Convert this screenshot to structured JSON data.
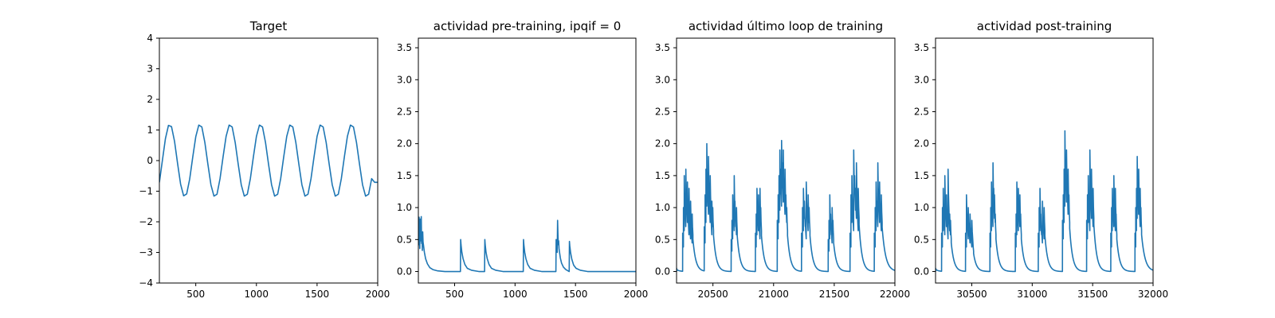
{
  "chart_data": [
    {
      "type": "line",
      "title": "Target",
      "xlim": [
        200,
        2000
      ],
      "ylim": [
        -4,
        4
      ],
      "xticks": [
        500,
        1000,
        1500,
        2000
      ],
      "yticks": [
        -4,
        -3,
        -2,
        -1,
        0,
        1,
        2,
        3,
        4
      ],
      "x_tick_labels": [
        "500",
        "1000",
        "1500",
        "2000"
      ],
      "y_tick_labels": [
        "−4",
        "−3",
        "−2",
        "−1",
        "0",
        "1",
        "2",
        "3",
        "4"
      ],
      "series": [
        {
          "color": "#1f77b4",
          "x": [
            200,
            225,
            250,
            275,
            300,
            325,
            350,
            375,
            400,
            425,
            450,
            475,
            500,
            525,
            550,
            575,
            600,
            625,
            650,
            675,
            700,
            725,
            750,
            775,
            800,
            825,
            850,
            875,
            900,
            925,
            950,
            975,
            1000,
            1025,
            1050,
            1075,
            1100,
            1125,
            1150,
            1175,
            1200,
            1225,
            1250,
            1275,
            1300,
            1325,
            1350,
            1375,
            1400,
            1425,
            1450,
            1475,
            1500,
            1525,
            1550,
            1575,
            1600,
            1625,
            1650,
            1675,
            1700,
            1725,
            1750,
            1775,
            1800,
            1825,
            1850,
            1875,
            1900,
            1925,
            1950,
            1975,
            2000
          ],
          "y": [
            -0.71,
            0.01,
            0.72,
            1.15,
            1.11,
            0.63,
            -0.09,
            -0.77,
            -1.15,
            -1.09,
            -0.6,
            0.11,
            0.78,
            1.16,
            1.1,
            0.59,
            -0.12,
            -0.79,
            -1.16,
            -1.1,
            -0.59,
            0.12,
            0.79,
            1.16,
            1.1,
            0.59,
            -0.12,
            -0.79,
            -1.16,
            -1.1,
            -0.59,
            0.12,
            0.79,
            1.16,
            1.1,
            0.59,
            -0.12,
            -0.79,
            -1.16,
            -1.1,
            -0.59,
            0.12,
            0.79,
            1.16,
            1.1,
            0.59,
            -0.12,
            -0.79,
            -1.16,
            -1.1,
            -0.59,
            0.12,
            0.79,
            1.16,
            1.1,
            0.59,
            -0.12,
            -0.79,
            -1.16,
            -1.1,
            -0.59,
            0.12,
            0.79,
            1.16,
            1.1,
            0.59,
            -0.12,
            -0.79,
            -1.16,
            -1.1,
            -0.59,
            -0.71,
            -0.71
          ]
        }
      ]
    },
    {
      "type": "line",
      "title": "actividad pre-training, ipqif = 0",
      "xlim": [
        200,
        2000
      ],
      "ylim": [
        -0.18,
        3.65
      ],
      "xticks": [
        500,
        1000,
        1500,
        2000
      ],
      "yticks": [
        0,
        0.5,
        1,
        1.5,
        2,
        2.5,
        3,
        3.5
      ],
      "x_tick_labels": [
        "500",
        "1000",
        "1500",
        "2000"
      ],
      "y_tick_labels": [
        "0.0",
        "0.5",
        "1.0",
        "1.5",
        "2.0",
        "2.5",
        "3.0",
        "3.5"
      ],
      "series": [
        {
          "color": "#1f77b4",
          "x": [
            200,
            203,
            206,
            209,
            212,
            215,
            218,
            221,
            224,
            227,
            230,
            233,
            236,
            239,
            242,
            250,
            260,
            275,
            295,
            320,
            360,
            420,
            500,
            548,
            550,
            553,
            560,
            570,
            585,
            605,
            640,
            700,
            748,
            750,
            753,
            760,
            770,
            785,
            805,
            840,
            900,
            1000,
            1068,
            1070,
            1073,
            1080,
            1090,
            1105,
            1125,
            1160,
            1220,
            1300,
            1338,
            1340,
            1343,
            1346,
            1349,
            1352,
            1355,
            1358,
            1361,
            1364,
            1368,
            1375,
            1385,
            1400,
            1420,
            1448,
            1450,
            1453,
            1460,
            1470,
            1485,
            1505,
            1540,
            1600,
            1700,
            1800,
            1900,
            2000
          ],
          "y": [
            0.76,
            0.42,
            0.85,
            0.52,
            0.36,
            0.82,
            0.48,
            0.64,
            0.86,
            0.44,
            0.6,
            0.33,
            0.62,
            0.46,
            0.42,
            0.3,
            0.2,
            0.12,
            0.06,
            0.03,
            0.01,
            0.0,
            0.0,
            0.0,
            0.5,
            0.42,
            0.3,
            0.2,
            0.11,
            0.05,
            0.02,
            0.0,
            0.0,
            0.5,
            0.42,
            0.3,
            0.2,
            0.11,
            0.05,
            0.02,
            0.0,
            0.0,
            0.0,
            0.5,
            0.42,
            0.3,
            0.2,
            0.11,
            0.05,
            0.02,
            0.0,
            0.0,
            0.0,
            0.5,
            0.38,
            0.45,
            0.3,
            0.8,
            0.58,
            0.42,
            0.48,
            0.36,
            0.3,
            0.21,
            0.13,
            0.07,
            0.03,
            0.0,
            0.47,
            0.4,
            0.29,
            0.19,
            0.1,
            0.05,
            0.02,
            0.0,
            0.0,
            0.0,
            0.0,
            0.0
          ]
        }
      ]
    },
    {
      "type": "line",
      "title": "actividad último loop de training",
      "xlim": [
        20200,
        22000
      ],
      "ylim": [
        -0.18,
        3.65
      ],
      "xticks": [
        20500,
        21000,
        21500,
        22000
      ],
      "yticks": [
        0,
        0.5,
        1,
        1.5,
        2,
        2.5,
        3,
        3.5
      ],
      "x_tick_labels": [
        "20500",
        "21000",
        "21500",
        "22000"
      ],
      "y_tick_labels": [
        "0.0",
        "0.5",
        "1.0",
        "1.5",
        "2.0",
        "2.5",
        "3.0",
        "3.5"
      ],
      "bursts": [
        {
          "start": 20200,
          "end": 20203,
          "peaks": [
            0.05
          ]
        },
        {
          "start": 20250,
          "end": 20335,
          "peaks": [
            0.6,
            1.0,
            1.5,
            1.1,
            1.6,
            1.2,
            1.4,
            0.9,
            1.3,
            0.8,
            1.1,
            0.7,
            0.9
          ]
        },
        {
          "start": 20428,
          "end": 20505,
          "peaks": [
            0.7,
            1.2,
            1.6,
            2.0,
            1.4,
            1.8,
            1.2,
            1.5,
            0.9,
            1.1,
            1.0
          ]
        },
        {
          "start": 20650,
          "end": 20700,
          "peaks": [
            0.5,
            0.8,
            1.2,
            1.0,
            1.5,
            1.1,
            0.9,
            1.0
          ]
        },
        {
          "start": 20850,
          "end": 20900,
          "peaks": [
            0.6,
            0.9,
            1.3,
            1.0,
            1.2,
            0.8,
            1.3,
            1.0
          ]
        },
        {
          "start": 21030,
          "end": 21115,
          "peaks": [
            0.8,
            1.2,
            1.5,
            1.9,
            1.6,
            2.05,
            1.7,
            1.9,
            1.4,
            1.6,
            1.2,
            1.0
          ]
        },
        {
          "start": 21230,
          "end": 21300,
          "peaks": [
            0.6,
            1.0,
            1.3,
            1.1,
            0.8,
            1.4,
            1.0,
            1.2,
            1.0
          ]
        },
        {
          "start": 21450,
          "end": 21495,
          "peaks": [
            0.5,
            0.8,
            1.2,
            0.9,
            0.7,
            1.0,
            0.8
          ]
        },
        {
          "start": 21630,
          "end": 21705,
          "peaks": [
            0.6,
            1.2,
            1.5,
            1.0,
            1.9,
            1.5,
            1.3,
            1.7,
            1.0,
            1.3
          ]
        },
        {
          "start": 21830,
          "end": 21895,
          "peaks": [
            0.6,
            1.0,
            1.4,
            1.1,
            1.7,
            1.2,
            1.4,
            1.0,
            1.2
          ]
        }
      ]
    },
    {
      "type": "line",
      "title": "actividad post-training",
      "xlim": [
        30200,
        32000
      ],
      "ylim": [
        -0.18,
        3.65
      ],
      "xticks": [
        30500,
        31000,
        31500,
        32000
      ],
      "yticks": [
        0,
        0.5,
        1,
        1.5,
        2,
        2.5,
        3,
        3.5
      ],
      "x_tick_labels": [
        "30500",
        "31000",
        "31500",
        "32000"
      ],
      "y_tick_labels": [
        "0.0",
        "0.5",
        "1.0",
        "1.5",
        "2.0",
        "2.5",
        "3.0",
        "3.5"
      ],
      "bursts": [
        {
          "start": 30200,
          "end": 30205,
          "peaks": [
            0.05
          ]
        },
        {
          "start": 30250,
          "end": 30330,
          "peaks": [
            0.6,
            1.0,
            1.3,
            0.9,
            1.5,
            1.1,
            1.2,
            0.8,
            1.6,
            1.0,
            0.9,
            0.8
          ]
        },
        {
          "start": 30448,
          "end": 30515,
          "peaks": [
            0.6,
            1.2,
            0.8,
            1.0,
            0.7,
            0.9,
            0.6,
            0.8,
            0.5
          ]
        },
        {
          "start": 30650,
          "end": 30700,
          "peaks": [
            0.6,
            1.0,
            1.4,
            1.1,
            1.7,
            1.3,
            1.2,
            0.9
          ]
        },
        {
          "start": 30860,
          "end": 30910,
          "peaks": [
            0.6,
            0.9,
            1.4,
            1.0,
            1.3,
            1.1,
            1.2,
            0.9
          ]
        },
        {
          "start": 31050,
          "end": 31105,
          "peaks": [
            0.6,
            1.0,
            1.3,
            0.9,
            0.7,
            1.1,
            0.8,
            1.0
          ]
        },
        {
          "start": 31250,
          "end": 31310,
          "peaks": [
            0.8,
            1.2,
            1.6,
            2.2,
            1.7,
            1.9,
            1.4,
            1.6,
            1.2
          ]
        },
        {
          "start": 31450,
          "end": 31510,
          "peaks": [
            0.8,
            1.2,
            1.5,
            1.0,
            1.9,
            1.3,
            1.6,
            1.1,
            1.3
          ]
        },
        {
          "start": 31650,
          "end": 31700,
          "peaks": [
            0.6,
            1.0,
            1.3,
            1.1,
            1.5,
            1.0,
            1.3,
            0.9
          ]
        },
        {
          "start": 31850,
          "end": 31905,
          "peaks": [
            0.6,
            1.0,
            1.3,
            1.8,
            1.4,
            1.6,
            1.1,
            1.3,
            1.0
          ]
        }
      ]
    }
  ]
}
